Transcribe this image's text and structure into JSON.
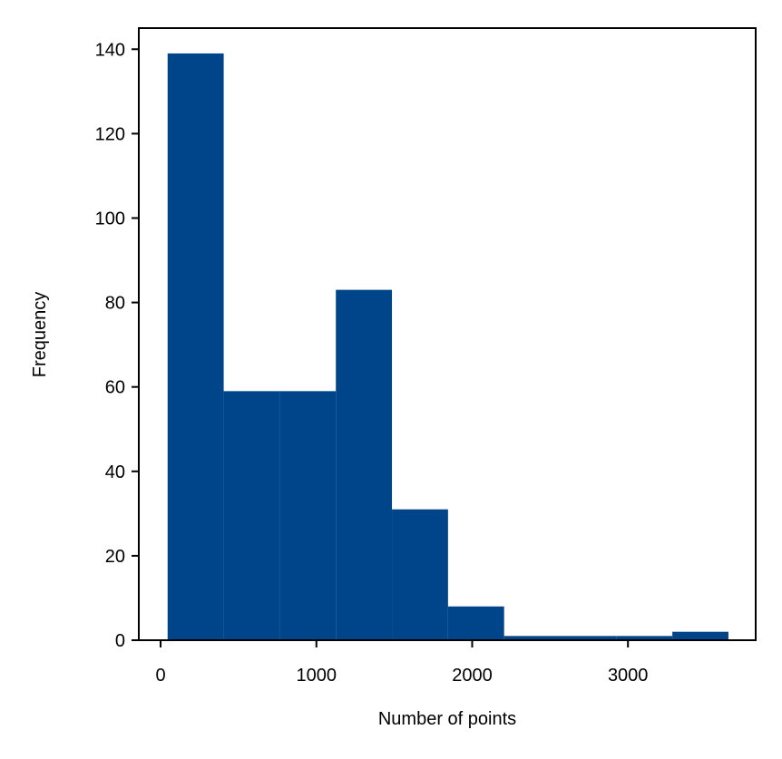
{
  "chart_data": {
    "type": "bar",
    "title": "",
    "xlabel": "Number of points",
    "ylabel": "Frequency",
    "bar_color": "#00448a",
    "xlim": [
      -140,
      3820
    ],
    "ylim": [
      0,
      145
    ],
    "xticks": [
      0,
      1000,
      2000,
      3000
    ],
    "yticks": [
      0,
      20,
      40,
      60,
      80,
      100,
      120,
      140
    ],
    "bins": [
      {
        "x0": 45,
        "x1": 405,
        "count": 139
      },
      {
        "x0": 405,
        "x1": 765,
        "count": 59
      },
      {
        "x0": 765,
        "x1": 1125,
        "count": 59
      },
      {
        "x0": 1125,
        "x1": 1485,
        "count": 83
      },
      {
        "x0": 1485,
        "x1": 1845,
        "count": 31
      },
      {
        "x0": 1845,
        "x1": 2205,
        "count": 8
      },
      {
        "x0": 2205,
        "x1": 2565,
        "count": 1
      },
      {
        "x0": 2565,
        "x1": 2925,
        "count": 1
      },
      {
        "x0": 2925,
        "x1": 3285,
        "count": 1
      },
      {
        "x0": 3285,
        "x1": 3645,
        "count": 2
      }
    ],
    "grid": false,
    "legend": "none"
  }
}
